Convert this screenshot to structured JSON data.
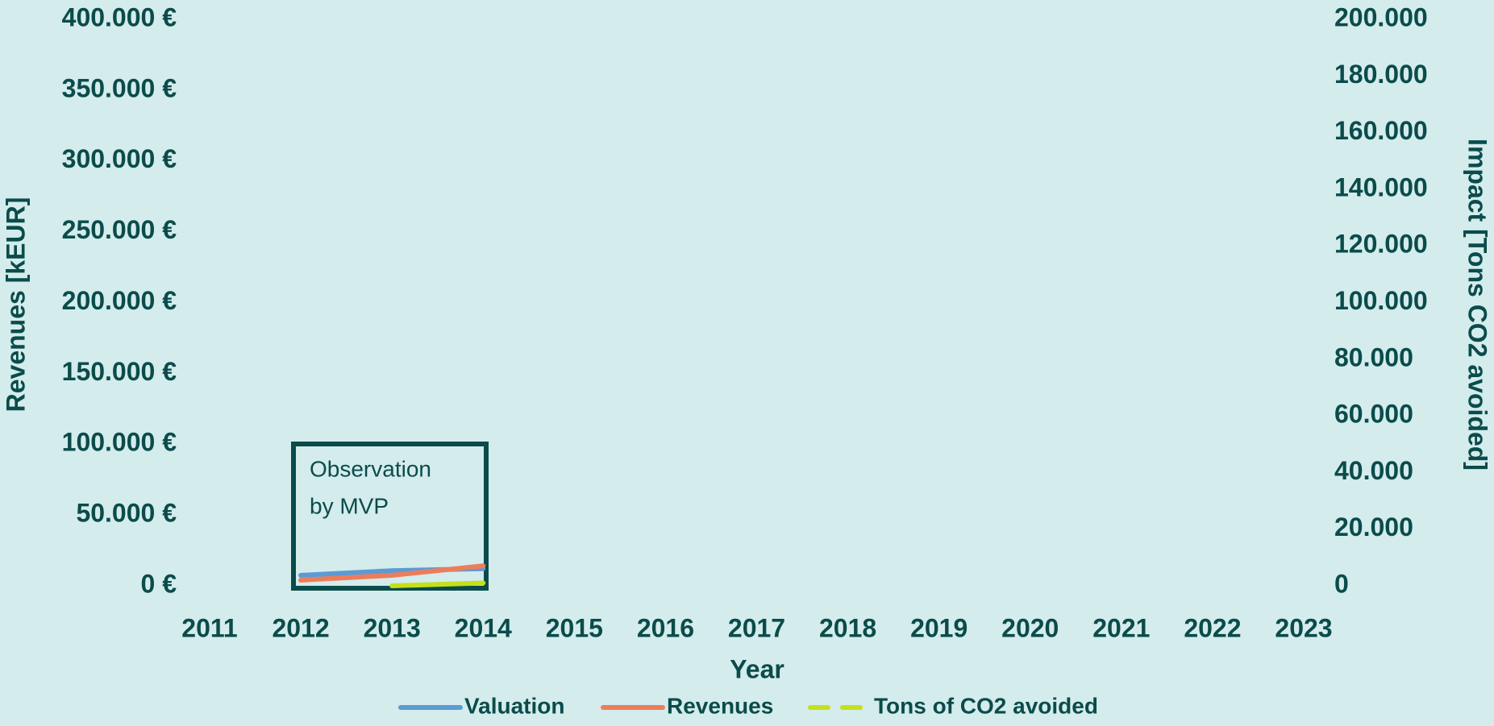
{
  "chart_data": {
    "type": "line",
    "xlabel": "Year",
    "ylabel": "Revenues [kEUR]",
    "y2label": "Impact [Tons CO2 avoided]",
    "annotation": [
      "Observation",
      "by MVP"
    ],
    "x": [
      2012,
      2013,
      2014
    ],
    "xlim": [
      2011,
      2023
    ],
    "xticks": [
      2011,
      2012,
      2013,
      2014,
      2015,
      2016,
      2017,
      2018,
      2019,
      2020,
      2021,
      2022,
      2023
    ],
    "ylim": [
      0,
      400000
    ],
    "yticks": [
      {
        "value": 0,
        "label": "0 €"
      },
      {
        "value": 50000,
        "label": "50.000 €"
      },
      {
        "value": 100000,
        "label": "100.000 €"
      },
      {
        "value": 150000,
        "label": "150.000 €"
      },
      {
        "value": 200000,
        "label": "200.000 €"
      },
      {
        "value": 250000,
        "label": "250.000 €"
      },
      {
        "value": 300000,
        "label": "300.000 €"
      },
      {
        "value": 350000,
        "label": "350.000 €"
      },
      {
        "value": 400000,
        "label": "400.000 €"
      }
    ],
    "y2lim": [
      0,
      200000
    ],
    "y2ticks": [
      0,
      {
        "value": 20000,
        "label": "20.000"
      },
      {
        "value": 40000,
        "label": "40.000"
      },
      {
        "value": 60000,
        "label": "60.000"
      },
      {
        "value": 80000,
        "label": "80.000"
      },
      {
        "value": 100000,
        "label": "100.000"
      },
      {
        "value": 120000,
        "label": "120.000"
      },
      {
        "value": 140000,
        "label": "140.000"
      },
      {
        "value": 160000,
        "label": "160.000"
      },
      {
        "value": 180000,
        "label": "180.000"
      },
      {
        "value": 200000,
        "label": "200.000"
      }
    ],
    "legend": "bottom",
    "series": [
      {
        "name": "Valuation",
        "color": "#5b9bd5",
        "values": [
          7400,
          10700,
          12100
        ]
      },
      {
        "name": "Revenues",
        "color": "#ed7d5a",
        "values": [
          4000,
          7400,
          14100
        ]
      },
      {
        "name": "Tons of CO2 avoided",
        "color": "#c5e01a",
        "axis": "y2",
        "linestyle": "dashed",
        "values": [
          null,
          0,
          1000
        ]
      }
    ]
  }
}
